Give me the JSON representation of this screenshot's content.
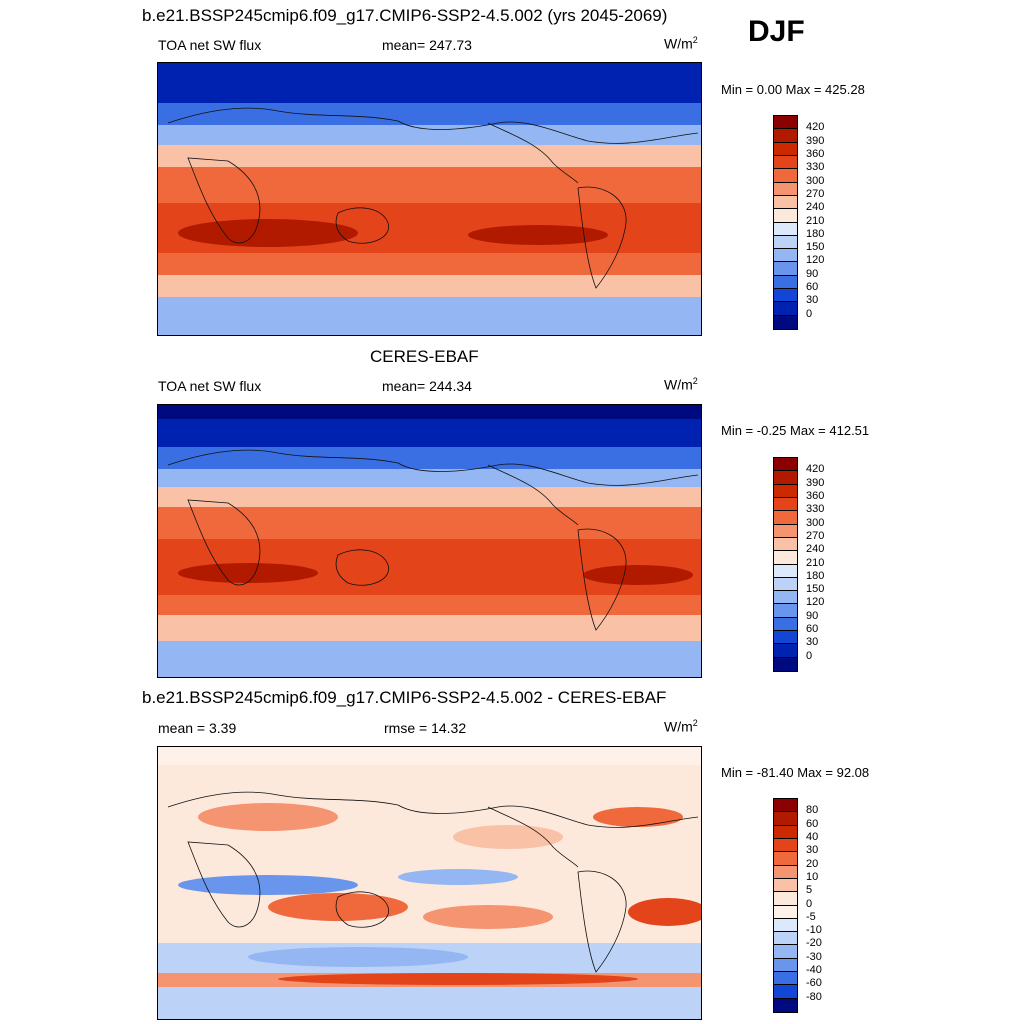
{
  "header": {
    "run_title": "b.e21.BSSP245cmip6.f09_g17.CMIP6-SSP2-4.5.002 (yrs 2045-2069)",
    "season": "DJF"
  },
  "panels": [
    {
      "variable": "TOA net SW flux",
      "stat": "mean= 247.73",
      "units": "W/m",
      "units_sup": "2",
      "minmax": "Min =   0.00 Max = 425.28",
      "levels": [
        "420",
        "390",
        "360",
        "330",
        "300",
        "270",
        "240",
        "210",
        "180",
        "150",
        "120",
        "90",
        "60",
        "30",
        "0"
      ]
    },
    {
      "heading": "CERES-EBAF",
      "variable": "TOA net SW flux",
      "stat": "mean= 244.34",
      "units": "W/m",
      "units_sup": "2",
      "minmax": "Min =  -0.25 Max = 412.51",
      "levels": [
        "420",
        "390",
        "360",
        "330",
        "300",
        "270",
        "240",
        "210",
        "180",
        "150",
        "120",
        "90",
        "60",
        "30",
        "0"
      ]
    },
    {
      "heading": "b.e21.BSSP245cmip6.f09_g17.CMIP6-SSP2-4.5.002 - CERES-EBAF",
      "stat_mean": "mean =   3.39",
      "stat_rmse": "rmse =  14.32",
      "units": "W/m",
      "units_sup": "2",
      "minmax": "Min = -81.40 Max =  92.08",
      "levels": [
        "80",
        "60",
        "40",
        "30",
        "20",
        "10",
        "5",
        "0",
        "-5",
        "-10",
        "-20",
        "-30",
        "-40",
        "-60",
        "-80"
      ]
    }
  ],
  "colors": {
    "abs_scale": [
      "#8b0000",
      "#b21a00",
      "#cc2900",
      "#e3441a",
      "#f0693d",
      "#f59470",
      "#f9c1a6",
      "#fde9dc",
      "#dce9fb",
      "#bcd3f7",
      "#94b6f2",
      "#6a95ec",
      "#3a6fe3",
      "#1446d6",
      "#0022b0",
      "#000a80"
    ],
    "diff_scale": [
      "#8b0000",
      "#b21a00",
      "#cc2900",
      "#e3441a",
      "#f0693d",
      "#f59470",
      "#f9c1a6",
      "#fde9dc",
      "#fdf1ea",
      "#dce9fb",
      "#bcd3f7",
      "#94b6f2",
      "#6a95ec",
      "#3a6fe3",
      "#1446d6",
      "#000a80"
    ]
  }
}
